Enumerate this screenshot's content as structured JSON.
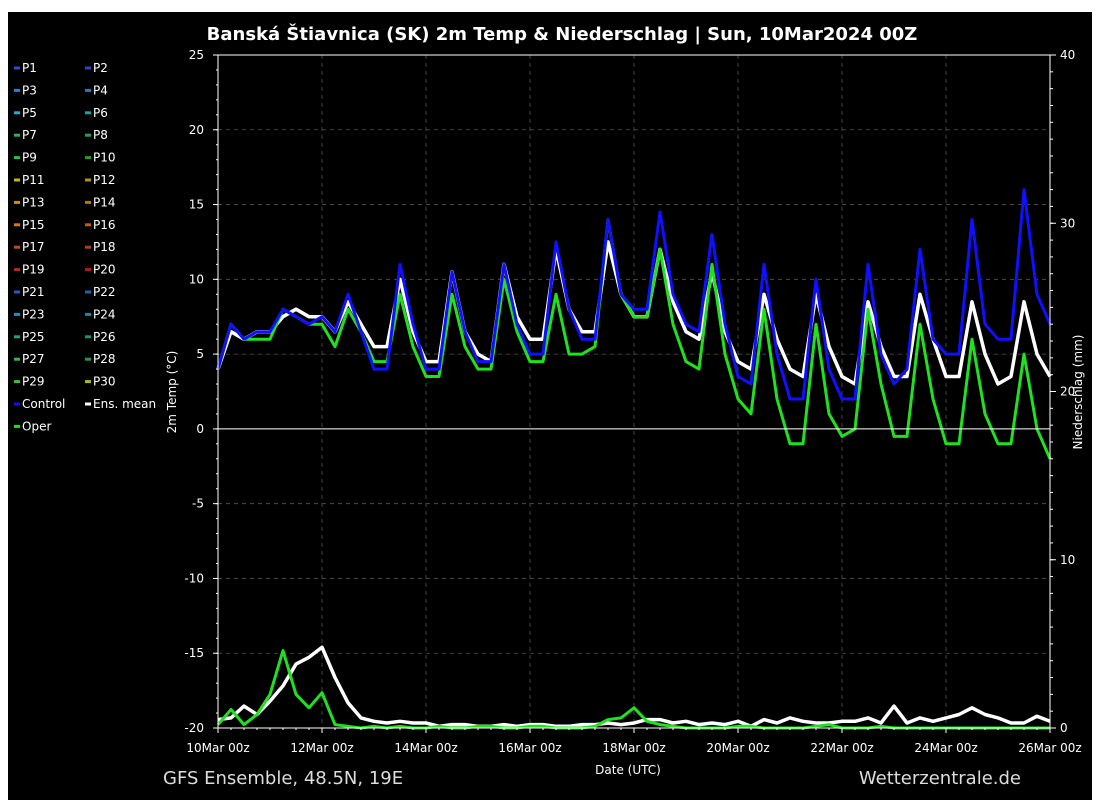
{
  "chart_data": {
    "type": "line",
    "title": "Banská Štiavnica  (SK)  2m Temp & Niederschlag | Sun, 10Mar2024 00Z",
    "xlabel": "Date (UTC)",
    "ylabel": "2m Temp (°C)",
    "y2label": "Niederschlag (mm)",
    "x_ticks": [
      "10Mar 00z",
      "12Mar 00z",
      "14Mar 00z",
      "16Mar 00z",
      "18Mar 00z",
      "20Mar 00z",
      "22Mar 00z",
      "24Mar 00z",
      "26Mar 00z"
    ],
    "xlim": [
      "2024-03-10T00:00Z",
      "2024-03-26T00:00Z"
    ],
    "ylim": [
      -20,
      25
    ],
    "y_ticks": [
      25,
      20,
      15,
      10,
      5,
      0,
      -5,
      -10,
      -15,
      -20
    ],
    "y2lim": [
      0,
      40
    ],
    "y2_ticks": [
      40,
      30,
      20,
      10,
      0
    ],
    "grid": true,
    "legend_placement": "left-outside",
    "legend": [
      "P1",
      "P2",
      "P3",
      "P4",
      "P5",
      "P6",
      "P7",
      "P8",
      "P9",
      "P10",
      "P11",
      "P12",
      "P13",
      "P14",
      "P15",
      "P16",
      "P17",
      "P18",
      "P19",
      "P20",
      "P21",
      "P22",
      "P23",
      "P24",
      "P25",
      "P26",
      "P27",
      "P28",
      "P29",
      "P30",
      "Control",
      "Ens. mean",
      "Oper"
    ],
    "legend_colors": [
      "#2b4fd8",
      "#2746c0",
      "#2a7fd0",
      "#2a78b8",
      "#28a8c8",
      "#20a09a",
      "#22b070",
      "#20a060",
      "#28c040",
      "#20a020",
      "#c8b020",
      "#b09018",
      "#c89018",
      "#b07818",
      "#d07818",
      "#b86018",
      "#c84818",
      "#b83818",
      "#b82818",
      "#a02020",
      "#2858c0",
      "#2060b0",
      "#2090b8",
      "#208898",
      "#20a080",
      "#209070",
      "#30b848",
      "#289840",
      "#38c030",
      "#a8b820",
      "#1010ff",
      "#ffffff",
      "#20e020"
    ],
    "series_time_step_hours": 6,
    "series": [
      {
        "name": "Ens. mean",
        "axis": "temp",
        "values": [
          4,
          6.5,
          6,
          6.5,
          6.5,
          7.5,
          8,
          7.5,
          7.5,
          6.5,
          8.5,
          7,
          5.5,
          5.5,
          10,
          6.5,
          4.5,
          4.5,
          10.5,
          6.5,
          5,
          4.5,
          11,
          7.5,
          6,
          6,
          12,
          8,
          6.5,
          6.5,
          12.5,
          9,
          7.5,
          7.5,
          12,
          8.5,
          6.5,
          6,
          10.5,
          6.5,
          4.5,
          4,
          9,
          6,
          4,
          3.5,
          9,
          5.5,
          3.5,
          3,
          8.5,
          5.5,
          3.5,
          3.5,
          9,
          6,
          3.5,
          3.5,
          8.5,
          5,
          3,
          3.5,
          8.5,
          5,
          3.5
        ]
      },
      {
        "name": "Oper",
        "axis": "temp",
        "values": [
          4,
          7,
          6,
          6,
          6,
          8,
          7.5,
          7,
          7,
          5.5,
          8,
          6.5,
          4.5,
          4.5,
          9,
          5.5,
          3.5,
          3.5,
          9,
          5.5,
          4,
          4,
          10,
          6.5,
          4.5,
          4.5,
          9,
          5,
          5,
          5.5,
          14,
          9,
          7.5,
          7.5,
          12,
          7,
          4.5,
          4,
          11,
          5,
          2,
          1,
          8,
          2,
          -1,
          -1,
          7,
          1,
          -0.5,
          0,
          8,
          3,
          -0.5,
          -0.5,
          7,
          2,
          -1,
          -1,
          6,
          1,
          -1,
          -1,
          5,
          0,
          -2
        ]
      },
      {
        "name": "Control",
        "axis": "temp",
        "values": [
          4,
          7,
          6,
          6.5,
          6.5,
          8,
          7.5,
          7,
          7.5,
          6.5,
          9,
          6.5,
          4,
          4,
          11,
          7,
          4,
          4,
          10.5,
          6.5,
          4.5,
          4.5,
          11,
          7,
          5,
          5,
          12.5,
          8,
          6,
          6,
          14,
          9,
          8,
          8,
          14.5,
          9,
          7,
          6.5,
          13,
          7,
          3.5,
          3,
          11,
          5,
          2,
          2,
          10,
          4,
          2,
          2,
          11,
          5,
          3,
          4,
          12,
          6,
          5,
          5,
          14,
          7,
          6,
          6,
          16,
          9,
          7
        ]
      },
      {
        "name": "Ens. mean",
        "axis": "precip",
        "values": [
          0.5,
          0.6,
          1.3,
          0.8,
          1.6,
          2.5,
          3.8,
          4.2,
          4.8,
          3,
          1.5,
          0.6,
          0.4,
          0.3,
          0.4,
          0.3,
          0.3,
          0.1,
          0.2,
          0.2,
          0.1,
          0.1,
          0.2,
          0.1,
          0.2,
          0.2,
          0.1,
          0.1,
          0.2,
          0.2,
          0.3,
          0.2,
          0.3,
          0.5,
          0.5,
          0.3,
          0.4,
          0.2,
          0.3,
          0.2,
          0.4,
          0.1,
          0.5,
          0.3,
          0.6,
          0.4,
          0.3,
          0.3,
          0.4,
          0.4,
          0.6,
          0.3,
          1.3,
          0.3,
          0.6,
          0.4,
          0.6,
          0.8,
          1.2,
          0.8,
          0.6,
          0.3,
          0.3,
          0.7,
          0.4
        ]
      },
      {
        "name": "Oper",
        "axis": "precip",
        "values": [
          0.2,
          1.1,
          0.2,
          0.8,
          2,
          4.6,
          2,
          1.2,
          2.1,
          0.2,
          0.1,
          0,
          0.1,
          0,
          0.1,
          0,
          0,
          0.1,
          0,
          0,
          0.1,
          0.1,
          0,
          0,
          0.1,
          0.1,
          0,
          0,
          0,
          0.1,
          0.5,
          0.6,
          1.2,
          0.4,
          0.2,
          0.1,
          0,
          0,
          0,
          0,
          0.1,
          0.1,
          0,
          0,
          0,
          0,
          0.1,
          0.2,
          0,
          0,
          0,
          0.1,
          0,
          0,
          0,
          0,
          0,
          0,
          0,
          0,
          0,
          0,
          0,
          0,
          0
        ]
      }
    ]
  },
  "footer": {
    "left": "GFS Ensemble, 48.5N, 19E",
    "right": "Wetterzentrale.de"
  }
}
